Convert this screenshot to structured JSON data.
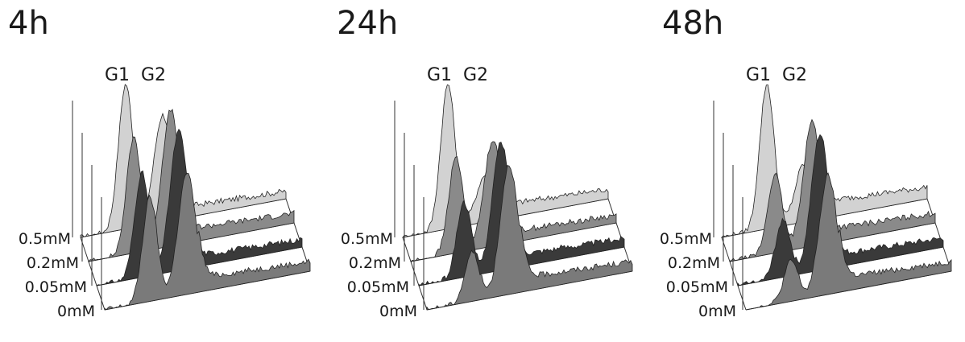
{
  "panels": [
    {
      "title": "4h"
    },
    {
      "title": "24h"
    },
    {
      "title": "48h"
    }
  ],
  "chart_data": [
    {
      "type": "area",
      "title": "4h",
      "peak_labels": [
        "G1",
        "G2"
      ],
      "series": [
        {
          "name": "0.5mM",
          "color": "#d2d2d2",
          "g1": 1.0,
          "g2": 0.74,
          "tail": 0.08
        },
        {
          "name": "0.2mM",
          "color": "#8a8a8a",
          "g1": 0.8,
          "g2": 0.94,
          "tail": 0.1
        },
        {
          "name": "0.05mM",
          "color": "#3a3a3a",
          "g1": 0.72,
          "g2": 0.96,
          "tail": 0.08
        },
        {
          "name": "0mM",
          "color": "#7a7a7a",
          "g1": 0.72,
          "g2": 0.84,
          "tail": 0.1
        }
      ]
    },
    {
      "type": "area",
      "title": "24h",
      "peak_labels": [
        "G1",
        "G2"
      ],
      "series": [
        {
          "name": "0.5mM",
          "color": "#d2d2d2",
          "g1": 1.0,
          "g2": 0.32,
          "tail": 0.1
        },
        {
          "name": "0.2mM",
          "color": "#8a8a8a",
          "g1": 0.66,
          "g2": 0.74,
          "tail": 0.08
        },
        {
          "name": "0.05mM",
          "color": "#3a3a3a",
          "g1": 0.52,
          "g2": 0.88,
          "tail": 0.09
        },
        {
          "name": "0mM",
          "color": "#7a7a7a",
          "g1": 0.34,
          "g2": 0.9,
          "tail": 0.1
        }
      ]
    },
    {
      "type": "area",
      "title": "48h",
      "peak_labels": [
        "G1",
        "G2"
      ],
      "series": [
        {
          "name": "0.5mM",
          "color": "#d2d2d2",
          "g1": 1.0,
          "g2": 0.4,
          "tail": 0.12
        },
        {
          "name": "0.2mM",
          "color": "#8a8a8a",
          "g1": 0.54,
          "g2": 0.86,
          "tail": 0.1
        },
        {
          "name": "0.05mM",
          "color": "#3a3a3a",
          "g1": 0.4,
          "g2": 0.94,
          "tail": 0.09
        },
        {
          "name": "0mM",
          "color": "#7a7a7a",
          "g1": 0.28,
          "g2": 0.82,
          "tail": 0.1
        }
      ]
    }
  ]
}
